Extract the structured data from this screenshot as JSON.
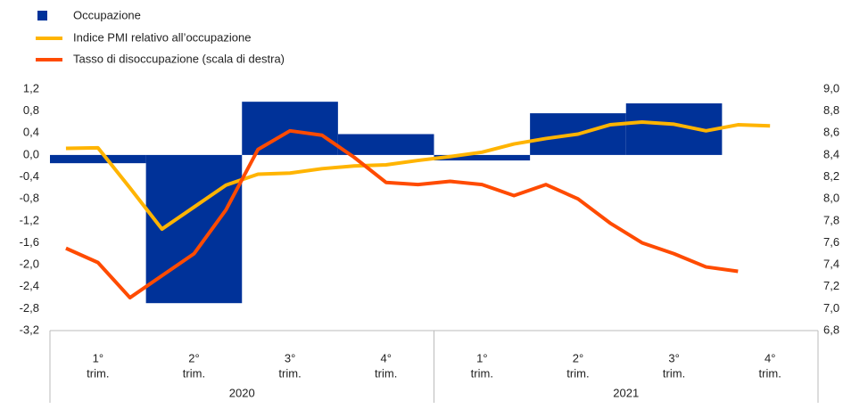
{
  "chart_data": {
    "type": "bar_line",
    "categories": [
      [
        "1°",
        "trim."
      ],
      [
        "2°",
        "trim."
      ],
      [
        "3°",
        "trim."
      ],
      [
        "4°",
        "trim."
      ],
      [
        "1°",
        "trim."
      ],
      [
        "2°",
        "trim."
      ],
      [
        "3°",
        "trim."
      ],
      [
        "4°",
        "trim."
      ]
    ],
    "year_groups": [
      "2020",
      "2021"
    ],
    "bar_series": {
      "name": "Occupazione",
      "color": "#003299",
      "values": [
        -0.15,
        -2.7,
        0.97,
        0.38,
        -0.1,
        0.76,
        0.94,
        null
      ]
    },
    "line_series": [
      {
        "name": "Indice PMI relativo all’occupazione",
        "color": "#ffb400",
        "axis": "y",
        "values": [
          0.12,
          0.13,
          -0.6,
          -1.35,
          -0.95,
          -0.55,
          -0.35,
          -0.33,
          -0.25,
          -0.2,
          -0.18,
          -0.1,
          -0.03,
          0.05,
          0.2,
          0.3,
          0.38,
          0.55,
          0.6,
          0.56,
          0.44,
          0.55,
          0.53,
          null
        ]
      },
      {
        "name": "Tasso di disoccupazione (scala di destra)",
        "color": "#ff4b00",
        "axis": "y2",
        "values": [
          7.55,
          7.42,
          7.1,
          7.3,
          7.5,
          7.9,
          8.45,
          8.62,
          8.58,
          8.38,
          8.15,
          8.13,
          8.16,
          8.13,
          8.03,
          8.13,
          8.0,
          7.78,
          7.6,
          7.5,
          7.38,
          7.34,
          null,
          null
        ]
      }
    ],
    "ylim": [
      -3.2,
      1.2
    ],
    "yticks": [
      {
        "value": 1.2,
        "label": "1,2"
      },
      {
        "value": 0.8,
        "label": "0,8"
      },
      {
        "value": 0.4,
        "label": "0,4"
      },
      {
        "value": 0,
        "label": "0,0"
      },
      {
        "value": -0.4,
        "label": "-0,4"
      },
      {
        "value": -0.8,
        "label": "-0,8"
      },
      {
        "value": -1.2,
        "label": "-1,2"
      },
      {
        "value": -1.6,
        "label": "-1,6"
      },
      {
        "value": -2.0,
        "label": "-2,0"
      },
      {
        "value": -2.4,
        "label": "-2,4"
      },
      {
        "value": -2.8,
        "label": "-2,8"
      },
      {
        "value": -3.2,
        "label": "-3,2"
      }
    ],
    "y2lim": [
      6.8,
      9.0
    ],
    "y2ticks": [
      {
        "value": 9.0,
        "label": "9,0"
      },
      {
        "value": 8.8,
        "label": "8,8"
      },
      {
        "value": 8.6,
        "label": "8,6"
      },
      {
        "value": 8.4,
        "label": "8,4"
      },
      {
        "value": 8.2,
        "label": "8,2"
      },
      {
        "value": 8.0,
        "label": "8,0"
      },
      {
        "value": 7.8,
        "label": "7,8"
      },
      {
        "value": 7.6,
        "label": "7,6"
      },
      {
        "value": 7.4,
        "label": "7,4"
      },
      {
        "value": 7.2,
        "label": "7,2"
      },
      {
        "value": 7.0,
        "label": "7,0"
      },
      {
        "value": 6.8,
        "label": "6,8"
      }
    ],
    "grid": false
  }
}
